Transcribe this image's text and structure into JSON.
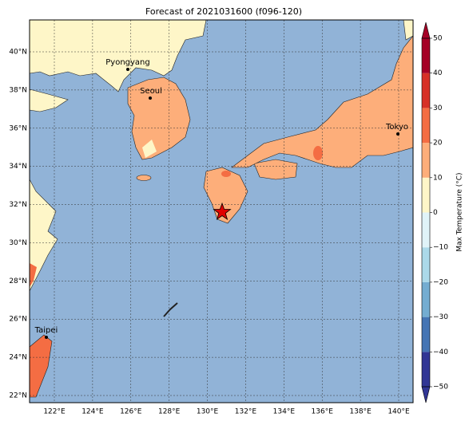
{
  "title": "Forecast of 2021031600 (f096-120)",
  "map": {
    "lon_ticks": [
      {
        "value": 122,
        "label": "122°E"
      },
      {
        "value": 124,
        "label": "124°E"
      },
      {
        "value": 126,
        "label": "126°E"
      },
      {
        "value": 128,
        "label": "128°E"
      },
      {
        "value": 130,
        "label": "130°E"
      },
      {
        "value": 132,
        "label": "132°E"
      },
      {
        "value": 134,
        "label": "134°E"
      },
      {
        "value": 136,
        "label": "136°E"
      },
      {
        "value": 138,
        "label": "138°E"
      },
      {
        "value": 140,
        "label": "140°E"
      }
    ],
    "lat_ticks": [
      {
        "value": 22,
        "label": "22°N"
      },
      {
        "value": 24,
        "label": "24°N"
      },
      {
        "value": 26,
        "label": "26°N"
      },
      {
        "value": 28,
        "label": "28°N"
      },
      {
        "value": 30,
        "label": "30°N"
      },
      {
        "value": 32,
        "label": "32°N"
      },
      {
        "value": 34,
        "label": "34°N"
      },
      {
        "value": 36,
        "label": "36°N"
      },
      {
        "value": 38,
        "label": "38°N"
      },
      {
        "value": 40,
        "label": "40°N"
      }
    ],
    "cities": [
      "Pyongyang",
      "Seoul",
      "Tokyo",
      "Taipei"
    ]
  },
  "colorbar": {
    "label": "Max Temperature (°C)",
    "ticks": [
      {
        "value": -50,
        "label": "−50"
      },
      {
        "value": -40,
        "label": "−40"
      },
      {
        "value": -30,
        "label": "−30"
      },
      {
        "value": -20,
        "label": "−20"
      },
      {
        "value": -10,
        "label": "−10"
      },
      0,
      10,
      20,
      30,
      40,
      50
    ],
    "colors": [
      "#313695",
      "#4575b4",
      "#74add1",
      "#abd9e9",
      "#e0f3f8",
      "#fef6c8",
      "#fdae7a",
      "#f46d43",
      "#d73027",
      "#a50026"
    ]
  }
}
